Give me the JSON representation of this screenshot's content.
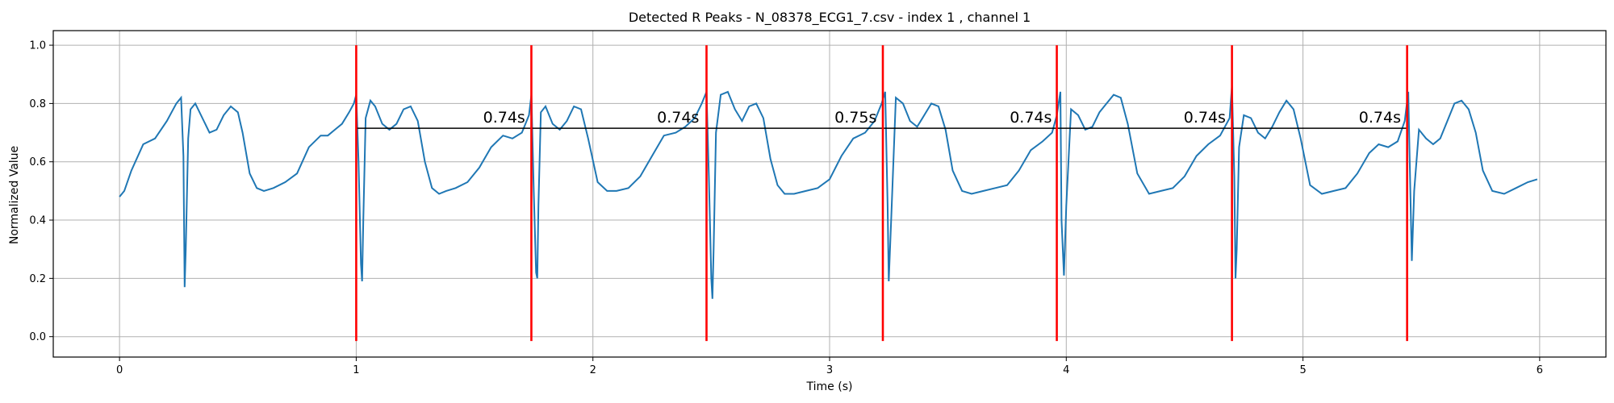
{
  "chart_data": {
    "type": "line",
    "title": "Detected R Peaks - N_08378_ECG1_7.csv - index 1 , channel 1",
    "xlabel": "Time (s)",
    "ylabel": "Normalized Value",
    "xlim": [
      -0.28,
      6.28
    ],
    "ylim": [
      -0.07,
      1.05
    ],
    "xticks": [
      0,
      1,
      2,
      3,
      4,
      5,
      6
    ],
    "yticks": [
      0.0,
      0.2,
      0.4,
      0.6,
      0.8,
      1.0
    ],
    "xtick_labels": [
      "0",
      "1",
      "2",
      "3",
      "4",
      "5",
      "6"
    ],
    "ytick_labels": [
      "0.0",
      "0.2",
      "0.4",
      "0.6",
      "0.8",
      "1.0"
    ],
    "grid": true,
    "colors": {
      "signal": "#1f77b4",
      "peaks": "#ff0000",
      "interval_line": "#000000",
      "grid": "#b0b0b0"
    },
    "signal": {
      "x": [
        0.0,
        0.02,
        0.05,
        0.1,
        0.15,
        0.2,
        0.22,
        0.24,
        0.26,
        0.27,
        0.275,
        0.28,
        0.29,
        0.3,
        0.32,
        0.35,
        0.38,
        0.41,
        0.44,
        0.47,
        0.5,
        0.52,
        0.55,
        0.58,
        0.61,
        0.65,
        0.7,
        0.75,
        0.8,
        0.85,
        0.88,
        0.91,
        0.94,
        0.97,
        0.99,
        1.0,
        1.01,
        1.02,
        1.025,
        1.03,
        1.04,
        1.06,
        1.08,
        1.11,
        1.14,
        1.17,
        1.2,
        1.23,
        1.26,
        1.29,
        1.32,
        1.35,
        1.38,
        1.42,
        1.47,
        1.52,
        1.57,
        1.62,
        1.66,
        1.7,
        1.73,
        1.74,
        1.75,
        1.76,
        1.765,
        1.77,
        1.78,
        1.8,
        1.83,
        1.86,
        1.89,
        1.92,
        1.95,
        1.98,
        2.02,
        2.06,
        2.1,
        2.15,
        2.2,
        2.25,
        2.3,
        2.35,
        2.39,
        2.43,
        2.46,
        2.48,
        2.49,
        2.5,
        2.505,
        2.51,
        2.52,
        2.54,
        2.57,
        2.6,
        2.63,
        2.66,
        2.69,
        2.72,
        2.75,
        2.78,
        2.81,
        2.85,
        2.9,
        2.95,
        3.0,
        3.05,
        3.1,
        3.15,
        3.19,
        3.22,
        3.235,
        3.245,
        3.25,
        3.26,
        3.28,
        3.31,
        3.34,
        3.37,
        3.4,
        3.43,
        3.46,
        3.49,
        3.52,
        3.56,
        3.6,
        3.65,
        3.7,
        3.75,
        3.8,
        3.85,
        3.9,
        3.94,
        3.96,
        3.975,
        3.98,
        3.99,
        4.0,
        4.02,
        4.05,
        4.08,
        4.11,
        4.14,
        4.17,
        4.2,
        4.23,
        4.26,
        4.3,
        4.35,
        4.4,
        4.45,
        4.5,
        4.55,
        4.6,
        4.65,
        4.69,
        4.7,
        4.71,
        4.715,
        4.72,
        4.73,
        4.75,
        4.78,
        4.81,
        4.84,
        4.87,
        4.9,
        4.93,
        4.96,
        4.99,
        5.03,
        5.08,
        5.13,
        5.18,
        5.23,
        5.28,
        5.32,
        5.36,
        5.4,
        5.43,
        5.445,
        5.455,
        5.46,
        5.47,
        5.49,
        5.52,
        5.55,
        5.58,
        5.61,
        5.64,
        5.67,
        5.7,
        5.73,
        5.76,
        5.8,
        5.85,
        5.9,
        5.95,
        5.99
      ],
      "y": [
        0.48,
        0.5,
        0.57,
        0.66,
        0.68,
        0.74,
        0.77,
        0.8,
        0.82,
        0.62,
        0.17,
        0.3,
        0.68,
        0.78,
        0.8,
        0.75,
        0.7,
        0.71,
        0.76,
        0.79,
        0.77,
        0.7,
        0.56,
        0.51,
        0.5,
        0.51,
        0.53,
        0.56,
        0.65,
        0.69,
        0.69,
        0.71,
        0.73,
        0.77,
        0.8,
        0.83,
        0.6,
        0.25,
        0.19,
        0.4,
        0.75,
        0.81,
        0.79,
        0.73,
        0.71,
        0.73,
        0.78,
        0.79,
        0.74,
        0.6,
        0.51,
        0.49,
        0.5,
        0.51,
        0.53,
        0.58,
        0.65,
        0.69,
        0.68,
        0.7,
        0.76,
        0.83,
        0.5,
        0.22,
        0.2,
        0.45,
        0.77,
        0.79,
        0.73,
        0.71,
        0.74,
        0.79,
        0.78,
        0.68,
        0.53,
        0.5,
        0.5,
        0.51,
        0.55,
        0.62,
        0.69,
        0.7,
        0.72,
        0.75,
        0.8,
        0.84,
        0.55,
        0.2,
        0.13,
        0.3,
        0.7,
        0.83,
        0.84,
        0.78,
        0.74,
        0.79,
        0.8,
        0.75,
        0.61,
        0.52,
        0.49,
        0.49,
        0.5,
        0.51,
        0.54,
        0.62,
        0.68,
        0.7,
        0.74,
        0.8,
        0.84,
        0.45,
        0.19,
        0.4,
        0.82,
        0.8,
        0.74,
        0.72,
        0.76,
        0.8,
        0.79,
        0.71,
        0.57,
        0.5,
        0.49,
        0.5,
        0.51,
        0.52,
        0.57,
        0.64,
        0.67,
        0.7,
        0.76,
        0.84,
        0.4,
        0.21,
        0.45,
        0.78,
        0.76,
        0.71,
        0.72,
        0.77,
        0.8,
        0.83,
        0.82,
        0.73,
        0.56,
        0.49,
        0.5,
        0.51,
        0.55,
        0.62,
        0.66,
        0.69,
        0.75,
        0.86,
        0.55,
        0.2,
        0.3,
        0.65,
        0.76,
        0.75,
        0.7,
        0.68,
        0.72,
        0.77,
        0.81,
        0.78,
        0.68,
        0.52,
        0.49,
        0.5,
        0.51,
        0.56,
        0.63,
        0.66,
        0.65,
        0.67,
        0.74,
        0.84,
        0.45,
        0.26,
        0.5,
        0.71,
        0.68,
        0.66,
        0.68,
        0.74,
        0.8,
        0.81,
        0.78,
        0.7,
        0.57,
        0.5,
        0.49,
        0.51,
        0.53,
        0.54
      ]
    },
    "r_peaks": [
      1.0,
      1.74,
      2.48,
      3.225,
      3.96,
      4.7,
      5.44
    ],
    "interval_line_y": 0.715,
    "intervals": [
      {
        "label": "0.74s",
        "x": 1.625
      },
      {
        "label": "0.74s",
        "x": 2.36
      },
      {
        "label": "0.75s",
        "x": 3.11
      },
      {
        "label": "0.74s",
        "x": 3.85
      },
      {
        "label": "0.74s",
        "x": 4.585
      },
      {
        "label": "0.74s",
        "x": 5.325
      }
    ]
  }
}
